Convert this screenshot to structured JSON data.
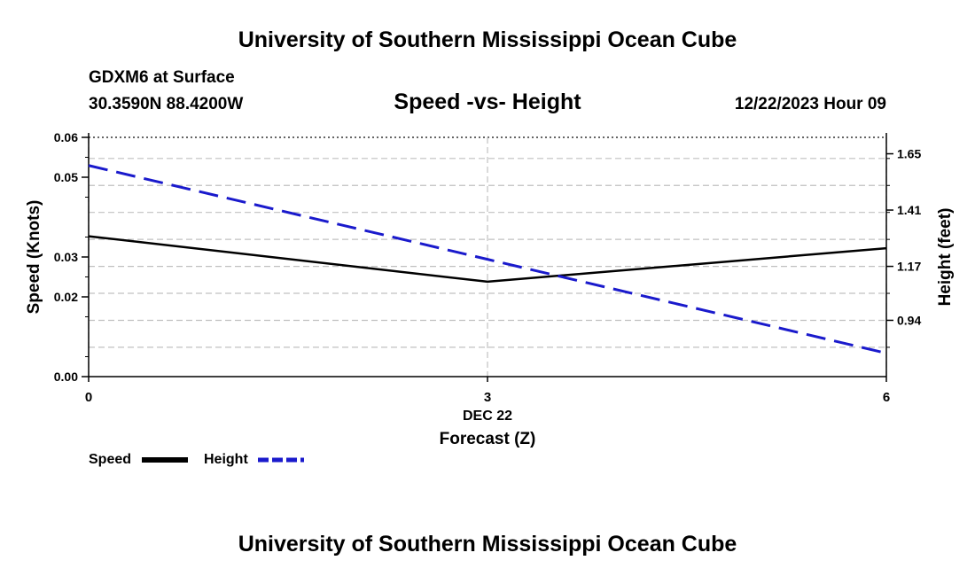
{
  "header": {
    "title": "University of Southern Mississippi Ocean Cube",
    "station": "GDXM6 at Surface",
    "coordinates": "30.3590N  88.4200W",
    "chart_title": "Speed -vs- Height",
    "date": "12/22/2023 Hour 09"
  },
  "footer": {
    "title": "University of Southern Mississippi Ocean Cube"
  },
  "legend": {
    "speed_label": "Speed",
    "height_label": "Height"
  },
  "colors": {
    "speed": "#000000",
    "height": "#1a1acc",
    "grid": "#c0c0c0"
  },
  "chart_data": {
    "type": "line",
    "title": "Speed -vs- Height",
    "x": [
      0,
      3,
      6
    ],
    "x_ticks": [
      0,
      3,
      6
    ],
    "x_tick_labels": [
      "0",
      "3",
      "6"
    ],
    "xlim": [
      0,
      6
    ],
    "xlabel_date": "DEC 22",
    "xlabel": "Forecast (Z)",
    "ylabel_left": "Speed (Knots)",
    "ylabel_right": "Height (feet)",
    "ylim_left": [
      0,
      0.06
    ],
    "yticks_left": [
      "0.00",
      "0.02",
      "0.03",
      "0.05",
      "0.06"
    ],
    "ylim_right": [
      0.7,
      1.72
    ],
    "yticks_right": [
      "0.94",
      "1.17",
      "1.41",
      "1.65"
    ],
    "series": [
      {
        "name": "Speed",
        "axis": "left",
        "style": "solid",
        "values": [
          0.0352,
          0.0238,
          0.0322
        ]
      },
      {
        "name": "Height",
        "axis": "right",
        "style": "dashed",
        "values": [
          1.6,
          1.2,
          0.8
        ]
      }
    ],
    "legend_position": "bottom-left"
  }
}
